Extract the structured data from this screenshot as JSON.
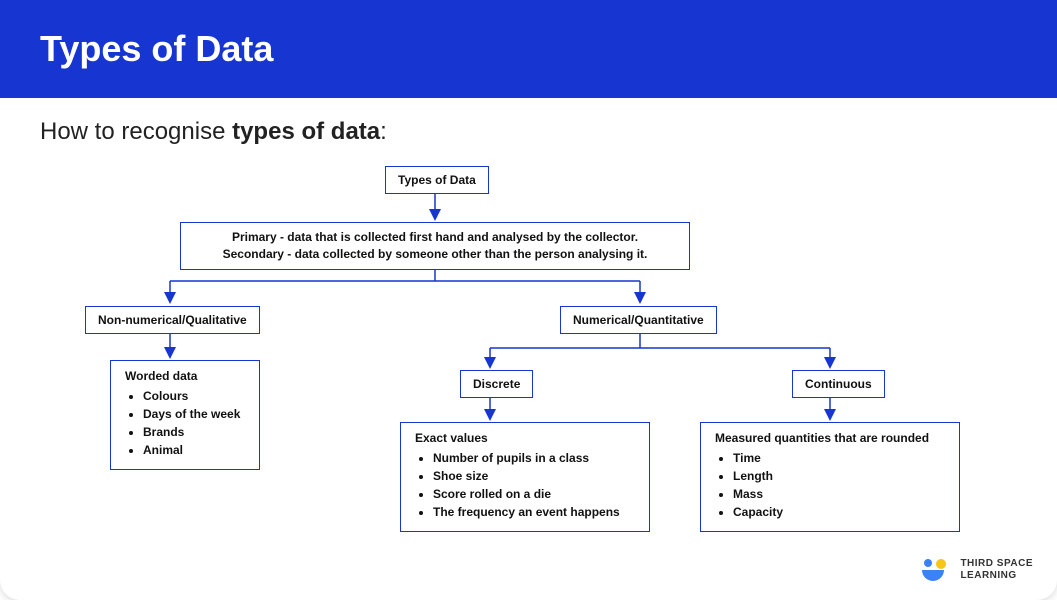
{
  "colors": {
    "header_bg": "#1735d1",
    "node_border": "#1735d1",
    "arrow": "#1735d1",
    "text": "#111111",
    "brand_blue": "#3b82f6",
    "brand_yellow": "#f5c518"
  },
  "header": {
    "title": "Types of Data"
  },
  "subtitle": {
    "prefix": "How to recognise ",
    "bold": "types of data",
    "suffix": ":"
  },
  "diagram": {
    "root": {
      "label": "Types of Data"
    },
    "source_box": {
      "line1": "Primary - data that is collected first hand and analysed by the collector.",
      "line2": "Secondary - data collected by someone other than the person analysing it."
    },
    "qualitative": {
      "label": "Non-numerical/Qualitative",
      "detail_title": "Worded data",
      "items": [
        "Colours",
        "Days of the week",
        "Brands",
        "Animal"
      ]
    },
    "quantitative": {
      "label": "Numerical/Quantitative",
      "discrete": {
        "label": "Discrete",
        "detail_title": "Exact values",
        "items": [
          "Number of pupils in a class",
          "Shoe size",
          "Score rolled on a die",
          "The frequency an event happens"
        ]
      },
      "continuous": {
        "label": "Continuous",
        "detail_title": "Measured quantities that are rounded",
        "items": [
          "Time",
          "Length",
          "Mass",
          "Capacity"
        ]
      }
    }
  },
  "brand": {
    "line1": "THIRD SPACE",
    "line2": "LEARNING"
  }
}
